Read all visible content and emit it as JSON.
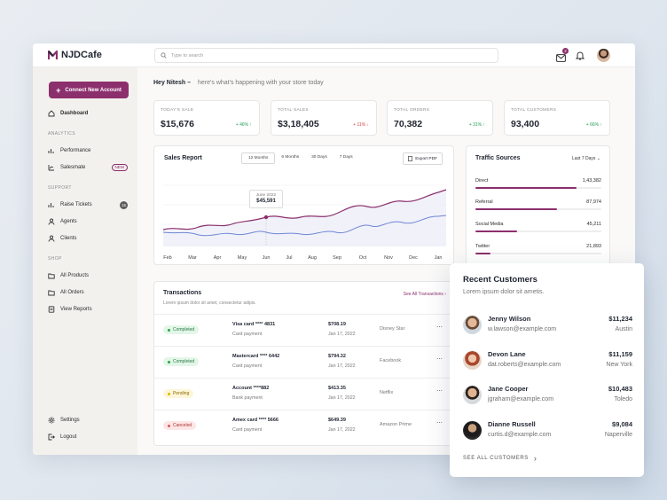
{
  "app": {
    "name": "NJDCafe"
  },
  "search": {
    "placeholder": "Type to search"
  },
  "header": {
    "mail_count": "2"
  },
  "sidebar": {
    "connect_label": "Connect New Account",
    "dashboard": "Dashboard",
    "analytics_title": "ANALYTICS",
    "performance": "Performance",
    "salesmate": "Salesmate",
    "salesmate_badge": "NEW",
    "support_title": "SUPPORT",
    "raise_tickets": "Raise Tickets",
    "raise_tickets_count": "15",
    "agents": "Agents",
    "clients": "Clients",
    "shop_title": "SHOP",
    "all_products": "All Products",
    "all_orders": "All Orders",
    "view_reports": "View Reports",
    "settings": "Settings",
    "logout": "Logout"
  },
  "greeting": {
    "name": "Hey Nitesh –",
    "sub": "here's what's happening with your store today"
  },
  "stats": [
    {
      "label": "TODAY'S SALE",
      "value": "$15,676",
      "change": "+ 46% ↑",
      "trend": "up"
    },
    {
      "label": "TOTAL SALES",
      "value": "$3,18,405",
      "change": "+ 11% ↓",
      "trend": "down"
    },
    {
      "label": "TOTAL ORDERS",
      "value": "70,382",
      "change": "+ 31% ↑",
      "trend": "up"
    },
    {
      "label": "TOTAL CUSTOMERS",
      "value": "93,400",
      "change": "+ 66% ↑",
      "trend": "up"
    }
  ],
  "sales_report": {
    "title": "Sales Report",
    "ranges": [
      "12 Months",
      "6 Months",
      "30 Days",
      "7 Days"
    ],
    "active_range": "12 Months",
    "export_label": "Export PDF",
    "tooltip_date": "June 2022",
    "tooltip_value": "$45,591",
    "months": [
      "Feb",
      "Mar",
      "Apr",
      "May",
      "Jun",
      "Jul",
      "Aug",
      "Sep",
      "Oct",
      "Nov",
      "Dec",
      "Jan"
    ]
  },
  "traffic": {
    "title": "Traffic Sources",
    "range": "Last 7 Days",
    "sources": [
      {
        "name": "Direct",
        "value": "1,43,382",
        "fraction": 0.8
      },
      {
        "name": "Referral",
        "value": "87,974",
        "fraction": 0.65
      },
      {
        "name": "Social Media",
        "value": "45,211",
        "fraction": 0.33
      },
      {
        "name": "Twitter",
        "value": "21,893",
        "fraction": 0.12
      }
    ]
  },
  "transactions": {
    "title": "Transactions",
    "desc": "Lorem ipsum dolor sit amet, consectetur adipis.",
    "see_all": "See All Transactions",
    "rows": [
      {
        "status": "Completed",
        "card": "Visa card  **** 4831",
        "type": "Card payment",
        "amount": "$708.19",
        "date": "Jan 17, 2022",
        "merchant": "Disney Star"
      },
      {
        "status": "Completed",
        "card": "Mastercard  **** 6442",
        "type": "Card payment",
        "amount": "$794.32",
        "date": "Jan 17, 2022",
        "merchant": "Facebook"
      },
      {
        "status": "Pending",
        "card": "Account  ****882",
        "type": "Bank payment",
        "amount": "$413.35",
        "date": "Jan 17, 2022",
        "merchant": "Netflix"
      },
      {
        "status": "Canceled",
        "card": "Amex card  **** 5666",
        "type": "Card payment",
        "amount": "$649.39",
        "date": "Jan 17, 2022",
        "merchant": "Amazon Prime"
      }
    ]
  },
  "recent_customers": {
    "title": "Recent Customers",
    "desc": "Lorem ipsum dolor sit ametis.",
    "see_all": "SEE ALL CUSTOMERS",
    "customers": [
      {
        "name": "Jenny Wilson",
        "email": "w.lawson@example.com",
        "amount": "$11,234",
        "city": "Austin"
      },
      {
        "name": "Devon Lane",
        "email": "dat.roberts@example.com",
        "amount": "$11,159",
        "city": "New York"
      },
      {
        "name": "Jane Cooper",
        "email": "jgraham@example.com",
        "amount": "$10,483",
        "city": "Toledo"
      },
      {
        "name": "Dianne Russell",
        "email": "curtis.d@example.com",
        "amount": "$9,084",
        "city": "Naperville"
      }
    ]
  },
  "colors": {
    "accent": "#8c2f6d",
    "secondary_line": "#6f86d6"
  }
}
